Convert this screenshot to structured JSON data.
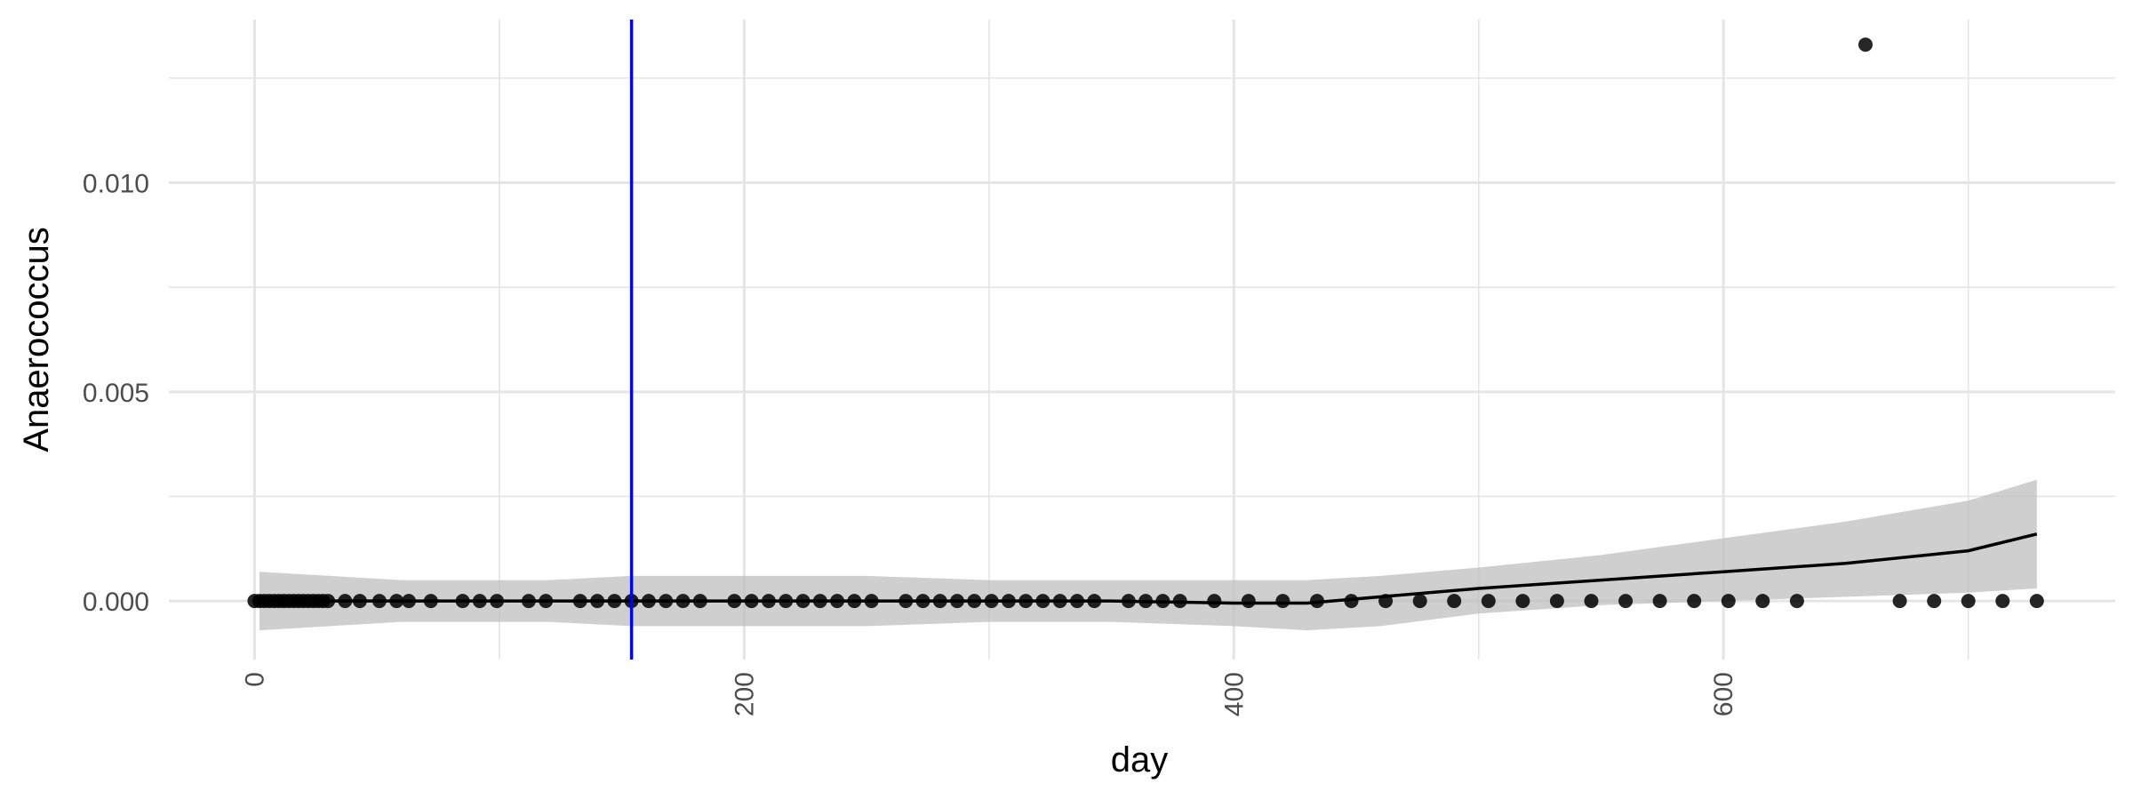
{
  "chart_data": {
    "type": "scatter",
    "title": "",
    "xlabel": "day",
    "ylabel": "Anaerococcus",
    "xlim": [
      -35,
      760
    ],
    "ylim": [
      -0.0014,
      0.0139
    ],
    "x_ticks": [
      0,
      200,
      400,
      600
    ],
    "x_tick_labels": [
      "0",
      "200",
      "400",
      "600"
    ],
    "y_ticks": [
      0,
      0.005,
      0.01
    ],
    "y_tick_labels": [
      "0.000",
      "0.005",
      "0.010"
    ],
    "grid": true,
    "legend": "none",
    "vline": {
      "x": 154,
      "color": "#0000ff"
    },
    "points": {
      "x": [
        0,
        2,
        4,
        6,
        8,
        10,
        12,
        14,
        16,
        18,
        20,
        22,
        24,
        26,
        28,
        30,
        37,
        43,
        51,
        58,
        63,
        72,
        85,
        92,
        99,
        112,
        119,
        133,
        140,
        147,
        154,
        161,
        168,
        175,
        182,
        196,
        203,
        210,
        217,
        224,
        231,
        238,
        245,
        252,
        266,
        273,
        280,
        287,
        294,
        301,
        308,
        315,
        322,
        329,
        336,
        343,
        357,
        364,
        371,
        378,
        392,
        406,
        420,
        434,
        448,
        462,
        476,
        490,
        504,
        518,
        532,
        546,
        560,
        574,
        588,
        602,
        616,
        630,
        658,
        672,
        686,
        700,
        714,
        728
      ],
      "y": [
        0,
        0,
        0,
        0,
        0,
        0,
        0,
        0,
        0,
        0,
        0,
        0,
        0,
        0,
        0,
        0,
        0,
        0,
        0,
        0,
        0,
        0,
        0,
        0,
        0,
        0,
        0,
        0,
        0,
        0,
        0,
        0,
        0,
        0,
        0,
        0,
        0,
        0,
        0,
        0,
        0,
        0,
        0,
        0,
        0,
        0,
        0,
        0,
        0,
        0,
        0,
        0,
        0,
        0,
        0,
        0,
        0,
        0,
        0,
        0,
        0,
        0,
        0,
        0,
        0,
        0,
        0,
        0,
        0,
        0,
        0,
        0,
        0,
        0,
        0,
        0,
        0,
        0,
        0.0133,
        0,
        0,
        0,
        0,
        0
      ]
    },
    "smooth": {
      "x": [
        2,
        60,
        120,
        154,
        200,
        250,
        300,
        350,
        400,
        430,
        460,
        500,
        550,
        600,
        650,
        700,
        728
      ],
      "y": [
        0,
        0,
        0,
        0,
        0,
        0,
        0,
        0,
        -5e-05,
        -5e-05,
        0.0001,
        0.0003,
        0.0005,
        0.0007,
        0.0009,
        0.0012,
        0.0016
      ],
      "upper": [
        0.0007,
        0.0005,
        0.0005,
        0.0006,
        0.0006,
        0.0006,
        0.0005,
        0.0005,
        0.0005,
        0.0005,
        0.0006,
        0.0008,
        0.0011,
        0.0015,
        0.0019,
        0.0024,
        0.0029
      ],
      "lower": [
        -0.0007,
        -0.0005,
        -0.0005,
        -0.0006,
        -0.0006,
        -0.0006,
        -0.0005,
        -0.0005,
        -0.0006,
        -0.0007,
        -0.0006,
        -0.0003,
        -0.0001,
        0.0,
        0.0001,
        0.0002,
        0.0003
      ]
    },
    "colors": {
      "points": "#000000",
      "smooth": "#000000",
      "band": "#bdbdbd",
      "vline": "#0000ff",
      "grid": "#e5e5e5"
    }
  }
}
